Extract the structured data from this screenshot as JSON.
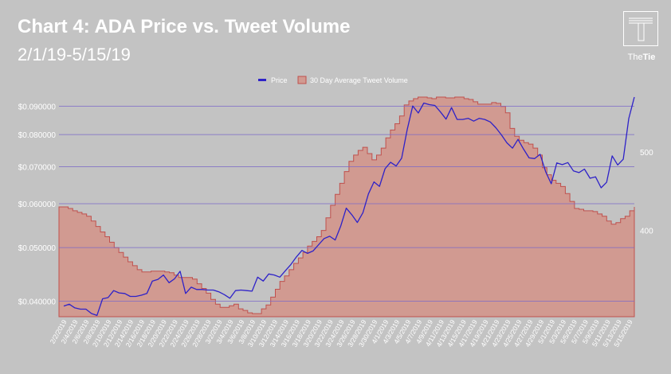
{
  "header": {
    "title": "Chart 4: ADA Price vs. Tweet Volume",
    "subtitle": "2/1/19-5/15/19"
  },
  "logo": {
    "text_the": "The",
    "text_tie": "Tie"
  },
  "colors": {
    "background": "#c3c3c3",
    "price_line": "#2e22c8",
    "tweet_fill": "#d19a91",
    "tweet_stroke": "#c0504d",
    "grid": "#7b68c8",
    "text": "#ffffff"
  },
  "chart_data": {
    "type": "line",
    "title": "Chart 4: ADA Price vs. Tweet Volume",
    "subtitle": "2/1/19-5/15/19",
    "legend": {
      "position": "top-center",
      "entries": [
        "Price",
        "30 Day Average Tweet Volume"
      ]
    },
    "grid": true,
    "x_tick_labels": [
      "2/2/2019",
      "2/4/2019",
      "2/6/2019",
      "2/8/2019",
      "2/10/2019",
      "2/12/2019",
      "2/14/2019",
      "2/16/2019",
      "2/18/2019",
      "2/20/2019",
      "2/22/2019",
      "2/24/2019",
      "2/26/2019",
      "2/28/2019",
      "3/2/2019",
      "3/4/2019",
      "3/6/2019",
      "3/8/2019",
      "3/10/2019",
      "3/12/2019",
      "3/14/2019",
      "3/16/2019",
      "3/18/2019",
      "3/20/2019",
      "3/22/2019",
      "3/24/2019",
      "3/26/2019",
      "3/28/2019",
      "3/30/2019",
      "4/1/2019",
      "4/3/2019",
      "4/5/2019",
      "4/7/2019",
      "4/9/2019",
      "4/11/2019",
      "4/13/2019",
      "4/15/2019",
      "4/17/2019",
      "4/19/2019",
      "4/21/2019",
      "4/23/2019",
      "4/25/2019",
      "4/27/2019",
      "4/29/2019",
      "5/1/2019",
      "5/3/2019",
      "5/5/2019",
      "5/7/2019",
      "5/9/2019",
      "5/11/2019",
      "5/13/2019",
      "5/15/2019"
    ],
    "y_left": {
      "scale": "log",
      "range": [
        0.0375,
        0.0935
      ],
      "tick_labels": [
        "$0.040000",
        "$0.050000",
        "$0.060000",
        "$0.070000",
        "$0.080000",
        "$0.090000"
      ],
      "tick_values": [
        0.04,
        0.05,
        0.06,
        0.07,
        0.08,
        0.09
      ]
    },
    "y_right": {
      "range": [
        290,
        570
      ],
      "tick_labels": [
        "400",
        "500"
      ],
      "tick_values": [
        400,
        500
      ]
    },
    "series": [
      {
        "name": "Price",
        "axis": "left",
        "style": "line",
        "values": [
          0.0392,
          0.0395,
          0.0389,
          0.0387,
          0.0387,
          0.038,
          0.0377,
          0.0404,
          0.0406,
          0.0418,
          0.0414,
          0.0413,
          0.0408,
          0.0408,
          0.041,
          0.0413,
          0.0435,
          0.0438,
          0.0446,
          0.0432,
          0.0439,
          0.0453,
          0.0413,
          0.0424,
          0.042,
          0.042,
          0.0419,
          0.0419,
          0.0416,
          0.0411,
          0.0405,
          0.0418,
          0.0419,
          0.0418,
          0.0417,
          0.0442,
          0.0435,
          0.0448,
          0.0446,
          0.0442,
          0.0454,
          0.0466,
          0.0481,
          0.0494,
          0.0488,
          0.0493,
          0.0506,
          0.0519,
          0.0524,
          0.0516,
          0.0547,
          0.0589,
          0.0573,
          0.0555,
          0.0578,
          0.0625,
          0.0657,
          0.0645,
          0.0694,
          0.0713,
          0.0702,
          0.0725,
          0.0817,
          0.0901,
          0.0875,
          0.0912,
          0.0906,
          0.0903,
          0.0879,
          0.0853,
          0.0895,
          0.0852,
          0.0852,
          0.0856,
          0.0846,
          0.0856,
          0.0852,
          0.0843,
          0.0823,
          0.0799,
          0.0773,
          0.0756,
          0.0784,
          0.0753,
          0.0726,
          0.0724,
          0.0737,
          0.0685,
          0.0652,
          0.0711,
          0.0706,
          0.0712,
          0.0688,
          0.0683,
          0.0693,
          0.0667,
          0.0671,
          0.0641,
          0.0656,
          0.0732,
          0.0705,
          0.0722,
          0.0855,
          0.0935
        ]
      },
      {
        "name": "30 Day Average Tweet Volume",
        "axis": "right",
        "style": "area-step",
        "values": [
          430,
          430,
          428,
          425,
          423,
          421,
          418,
          412,
          405,
          398,
          392,
          385,
          378,
          372,
          366,
          360,
          355,
          350,
          347,
          347,
          348,
          348,
          348,
          347,
          346,
          343,
          340,
          340,
          340,
          338,
          332,
          326,
          320,
          312,
          306,
          302,
          302,
          304,
          306,
          300,
          298,
          295,
          294,
          294,
          300,
          305,
          315,
          325,
          335,
          342,
          350,
          358,
          365,
          372,
          380,
          386,
          392,
          400,
          416,
          432,
          446,
          460,
          475,
          488,
          496,
          502,
          506,
          498,
          490,
          496,
          505,
          518,
          528,
          536,
          546,
          560,
          565,
          568,
          570,
          570,
          569,
          568,
          570,
          570,
          569,
          569,
          570,
          570,
          568,
          567,
          564,
          561,
          561,
          561,
          563,
          562,
          558,
          550,
          530,
          520,
          515,
          512,
          510,
          505,
          496,
          480,
          471,
          464,
          460,
          456,
          447,
          437,
          428,
          427,
          425,
          425,
          424,
          421,
          418,
          412,
          408,
          410,
          415,
          418,
          425,
          430
        ]
      }
    ]
  }
}
